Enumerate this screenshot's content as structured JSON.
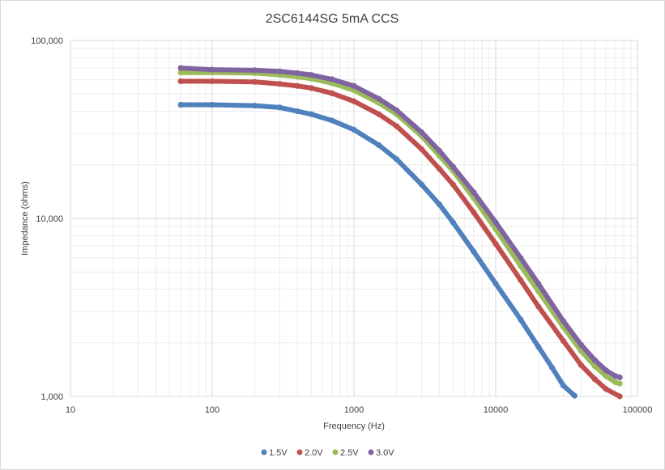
{
  "chart_data": {
    "type": "scatter",
    "title": "2SC6144SG 5mA CCS",
    "xlabel": "Frequency (Hz)",
    "ylabel": "Impedance (ohms)",
    "xscale": "log",
    "yscale": "log",
    "xlim": [
      10,
      100000
    ],
    "ylim": [
      1000,
      100000
    ],
    "grid": true,
    "legend": "bottom",
    "x_tick_labels": [
      "10",
      "100",
      "1000",
      "10000",
      "100000"
    ],
    "y_tick_labels": [
      "1,000",
      "10,000",
      "100,000"
    ],
    "series": [
      {
        "name": "1.5V",
        "color": "#4f81bd",
        "points": [
          [
            60,
            43500
          ],
          [
            100,
            43500
          ],
          [
            200,
            43000
          ],
          [
            300,
            42000
          ],
          [
            400,
            40000
          ],
          [
            500,
            38500
          ],
          [
            700,
            35500
          ],
          [
            1000,
            31500
          ],
          [
            1500,
            25800
          ],
          [
            2000,
            21500
          ],
          [
            3000,
            15500
          ],
          [
            4000,
            12000
          ],
          [
            5000,
            9500
          ],
          [
            7000,
            6500
          ],
          [
            10000,
            4300
          ],
          [
            15000,
            2700
          ],
          [
            20000,
            1900
          ],
          [
            25000,
            1450
          ],
          [
            30000,
            1150
          ],
          [
            36000,
            1010
          ]
        ]
      },
      {
        "name": "2.0V",
        "color": "#c0504d",
        "points": [
          [
            60,
            59000
          ],
          [
            100,
            59000
          ],
          [
            200,
            58500
          ],
          [
            300,
            57000
          ],
          [
            400,
            55500
          ],
          [
            500,
            54000
          ],
          [
            700,
            50500
          ],
          [
            1000,
            45500
          ],
          [
            1500,
            38500
          ],
          [
            2000,
            33000
          ],
          [
            3000,
            24500
          ],
          [
            4000,
            19000
          ],
          [
            5000,
            15500
          ],
          [
            7000,
            10800
          ],
          [
            10000,
            7200
          ],
          [
            15000,
            4500
          ],
          [
            20000,
            3200
          ],
          [
            30000,
            2050
          ],
          [
            40000,
            1500
          ],
          [
            50000,
            1250
          ],
          [
            60000,
            1100
          ],
          [
            75000,
            1000
          ]
        ]
      },
      {
        "name": "2.5V",
        "color": "#9bbb59",
        "points": [
          [
            60,
            66000
          ],
          [
            100,
            66000
          ],
          [
            200,
            65500
          ],
          [
            300,
            64000
          ],
          [
            400,
            62500
          ],
          [
            500,
            61000
          ],
          [
            700,
            57500
          ],
          [
            1000,
            52500
          ],
          [
            1500,
            44500
          ],
          [
            2000,
            38500
          ],
          [
            3000,
            29000
          ],
          [
            4000,
            22500
          ],
          [
            5000,
            18500
          ],
          [
            7000,
            13000
          ],
          [
            10000,
            8700
          ],
          [
            15000,
            5400
          ],
          [
            20000,
            3900
          ],
          [
            30000,
            2450
          ],
          [
            40000,
            1800
          ],
          [
            50000,
            1480
          ],
          [
            60000,
            1300
          ],
          [
            70000,
            1200
          ],
          [
            75000,
            1180
          ]
        ]
      },
      {
        "name": "3.0V",
        "color": "#8064a2",
        "points": [
          [
            60,
            70000
          ],
          [
            100,
            68500
          ],
          [
            200,
            68000
          ],
          [
            300,
            67000
          ],
          [
            400,
            65500
          ],
          [
            500,
            64000
          ],
          [
            700,
            60500
          ],
          [
            1000,
            55500
          ],
          [
            1500,
            47000
          ],
          [
            2000,
            40500
          ],
          [
            3000,
            30500
          ],
          [
            4000,
            24000
          ],
          [
            5000,
            19500
          ],
          [
            7000,
            14000
          ],
          [
            10000,
            9500
          ],
          [
            15000,
            6000
          ],
          [
            20000,
            4300
          ],
          [
            30000,
            2650
          ],
          [
            40000,
            1950
          ],
          [
            50000,
            1600
          ],
          [
            60000,
            1400
          ],
          [
            70000,
            1300
          ],
          [
            75000,
            1280
          ]
        ]
      }
    ]
  }
}
